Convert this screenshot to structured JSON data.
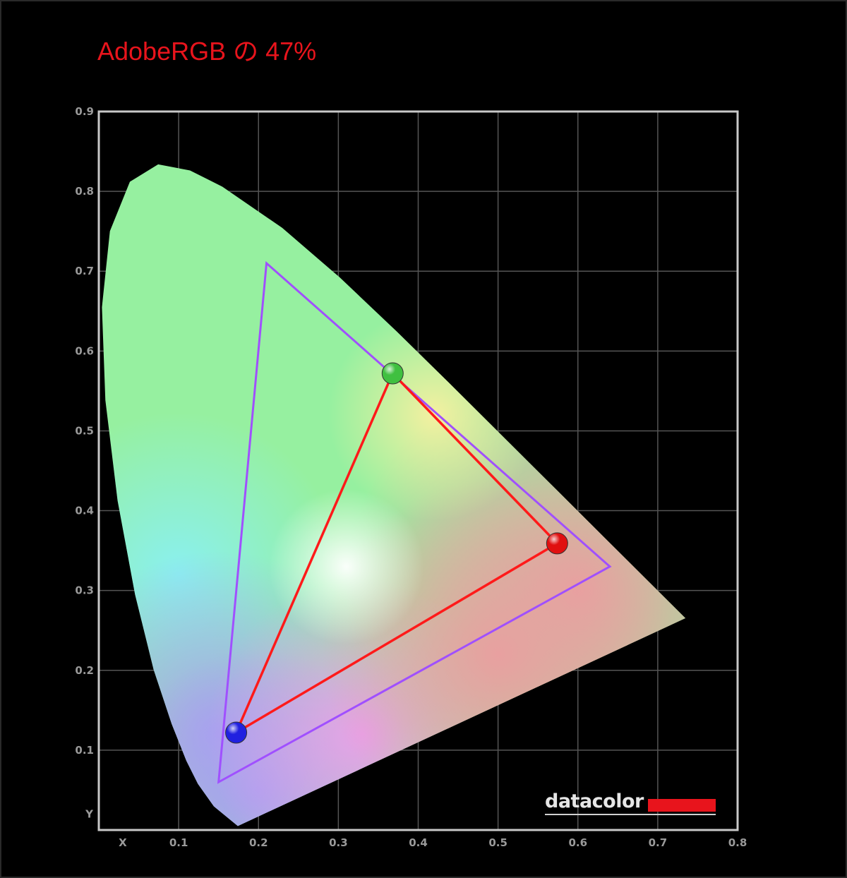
{
  "chart_data": {
    "type": "scatter",
    "title": "AdobeRGB の 47%",
    "xlabel": "X",
    "ylabel": "Y",
    "xlim": [
      0,
      0.8
    ],
    "ylim": [
      0,
      0.9
    ],
    "grid": true,
    "x_ticks": [
      "0.1",
      "0.2",
      "0.3",
      "0.4",
      "0.5",
      "0.6",
      "0.7",
      "0.8"
    ],
    "y_ticks": [
      "0.1",
      "0.2",
      "0.3",
      "0.4",
      "0.5",
      "0.6",
      "0.7",
      "0.8",
      "0.9"
    ],
    "spectral_locus": [
      [
        0.1741,
        0.005
      ],
      [
        0.144,
        0.0297
      ],
      [
        0.1241,
        0.0578
      ],
      [
        0.1096,
        0.0868
      ],
      [
        0.0913,
        0.1327
      ],
      [
        0.0687,
        0.2007
      ],
      [
        0.0454,
        0.295
      ],
      [
        0.0235,
        0.4127
      ],
      [
        0.0082,
        0.5384
      ],
      [
        0.0039,
        0.6548
      ],
      [
        0.0139,
        0.7502
      ],
      [
        0.0389,
        0.812
      ],
      [
        0.0743,
        0.8338
      ],
      [
        0.1142,
        0.8262
      ],
      [
        0.1547,
        0.8059
      ],
      [
        0.2296,
        0.7543
      ],
      [
        0.3016,
        0.6923
      ],
      [
        0.3731,
        0.6245
      ],
      [
        0.4441,
        0.5547
      ],
      [
        0.5125,
        0.4866
      ],
      [
        0.5752,
        0.4242
      ],
      [
        0.627,
        0.3725
      ],
      [
        0.6915,
        0.3083
      ],
      [
        0.7347,
        0.2653
      ]
    ],
    "series": [
      {
        "role": "reference-gamut",
        "color": "#a050ff",
        "points": [
          [
            0.64,
            0.33
          ],
          [
            0.21,
            0.71
          ],
          [
            0.15,
            0.06
          ]
        ]
      },
      {
        "role": "measured-gamut",
        "color": "#ff1a1a",
        "points": [
          [
            0.574,
            0.359
          ],
          [
            0.368,
            0.572
          ],
          [
            0.172,
            0.122
          ]
        ],
        "point_colors": [
          "#e01010",
          "#40c040",
          "#2020e0"
        ]
      }
    ]
  },
  "brand": {
    "logo_text": "datacolor",
    "accent": "#e8141c"
  }
}
